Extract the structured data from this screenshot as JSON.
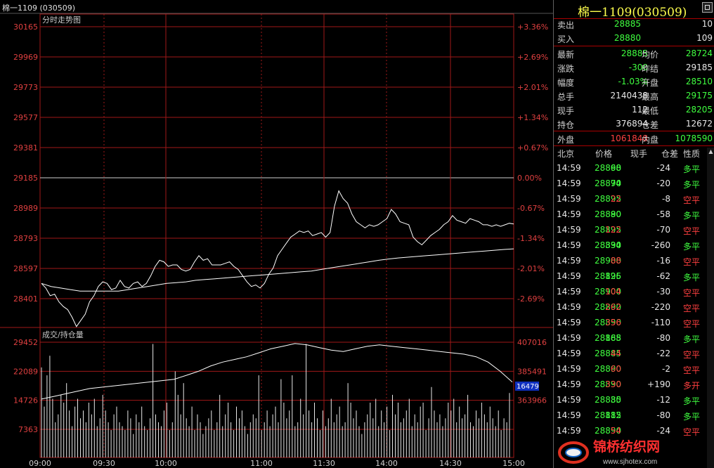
{
  "window_title": "棉一1109 (030509)",
  "chart_title_top": "分时走势图",
  "chart_title_bottom": "成交/持仓量",
  "chart_data": [
    {
      "type": "line",
      "title": "分时走势图",
      "yticks_left": [
        "30165",
        "29969",
        "29773",
        "29577",
        "29381",
        "29185",
        "28989",
        "28793",
        "28597",
        "28401"
      ],
      "yticks_right": [
        "+3.36%",
        "+2.69%",
        "+2.01%",
        "+1.34%",
        "+0.67%",
        "0.00%",
        "-0.67%",
        "-1.34%",
        "-2.01%",
        "-2.69%"
      ],
      "ylim": [
        28205,
        30165
      ],
      "x_ticks": [
        "09:00",
        "09:30",
        "10:00",
        "11:00",
        "11:30",
        "14:00",
        "14:30",
        "15:00"
      ],
      "series": [
        {
          "color": "#ffffff",
          "values": [
            28500,
            28470,
            28420,
            28430,
            28380,
            28350,
            28330,
            28280,
            28220,
            28260,
            28300,
            28380,
            28420,
            28480,
            28510,
            28500,
            28460,
            28470,
            28520,
            28480,
            28470,
            28500,
            28510,
            28480,
            28500,
            28550,
            28610,
            28650,
            28640,
            28610,
            28620,
            28620,
            28590,
            28580,
            28590,
            28640,
            28680,
            28650,
            28660,
            28620,
            28620,
            28620,
            28630,
            28640,
            28610,
            28590,
            28550,
            28510,
            28480,
            28490,
            28470,
            28500,
            28560,
            28600,
            28680,
            28720,
            28760,
            28800,
            28820,
            28840,
            28830,
            28840,
            28810,
            28820,
            28830,
            28800,
            28830,
            29000,
            29100,
            29050,
            29020,
            28950,
            28900,
            28880,
            28860,
            28880,
            28870,
            28880,
            28900,
            28920,
            28980,
            28950,
            28900,
            28890,
            28880,
            28800,
            28770,
            28750,
            28780,
            28810,
            28830,
            28850,
            28880,
            28900,
            28940,
            28910,
            28900,
            28890,
            28920,
            28910,
            28900,
            28880,
            28880,
            28870,
            28880,
            28870,
            28880,
            28890,
            28885
          ]
        },
        {
          "color": "#ffffff",
          "values": [
            28500,
            28480,
            28470,
            28460,
            28450,
            28450,
            28450,
            28450,
            28450,
            28460,
            28470,
            28480,
            28490,
            28500,
            28505,
            28510,
            28520,
            28525,
            28530,
            28535,
            28540,
            28545,
            28550,
            28555,
            28560,
            28565,
            28570,
            28575,
            28580,
            28590,
            28600,
            28610,
            28620,
            28630,
            28640,
            28650,
            28658,
            28665,
            28670,
            28675,
            28680,
            28685,
            28690,
            28695,
            28700,
            28705,
            28710,
            28715,
            28720,
            28724
          ]
        }
      ]
    },
    {
      "type": "bar",
      "title": "成交/持仓量",
      "yticks_left": [
        "29452",
        "22089",
        "14726",
        "7363"
      ],
      "yticks_right": [
        "407016",
        "385491",
        "363966"
      ],
      "current_label": "16479",
      "ylim": [
        0,
        29452
      ],
      "values": [
        23000,
        13000,
        21000,
        26000,
        15000,
        9000,
        11000,
        16000,
        14000,
        19000,
        12000,
        8000,
        13000,
        15000,
        10000,
        12000,
        9000,
        14000,
        11000,
        15000,
        8000,
        10000,
        16000,
        12000,
        9000,
        7000,
        11000,
        13000,
        9000,
        8000,
        7000,
        12000,
        10000,
        6000,
        11000,
        9000,
        13000,
        8000,
        7000,
        10000,
        29000,
        11000,
        9000,
        8000,
        12000,
        14000,
        7000,
        9000,
        22000,
        16000,
        11000,
        19000,
        10000,
        8000,
        13000,
        7000,
        11000,
        9000,
        6000,
        8000,
        10000,
        12000,
        7000,
        9000,
        16000,
        8000,
        11000,
        14000,
        9000,
        7000,
        13000,
        10000,
        12000,
        8000,
        6000,
        9000,
        11000,
        10000,
        21000,
        7000,
        9000,
        12000,
        8000,
        11000,
        13000,
        9000,
        20000,
        14000,
        10000,
        12000,
        21000,
        8000,
        9000,
        15000,
        11000,
        29000,
        12000,
        9000,
        14000,
        10000,
        7000,
        12000,
        8000,
        10000,
        15000,
        9000,
        11000,
        13000,
        8000,
        9000,
        19000,
        14000,
        10000,
        12000,
        8000,
        6000,
        9000,
        11000,
        14000,
        10000,
        15000,
        8000,
        12000,
        9000,
        13000,
        7000,
        16000,
        11000,
        14000,
        9000,
        10000,
        12000,
        15000,
        8000,
        11000,
        9000,
        13000,
        14000,
        7000,
        10000,
        18000,
        12000,
        9000,
        11000,
        8000,
        10000,
        14000,
        12000,
        15000,
        9000,
        13000,
        10000,
        11000,
        16000,
        9000,
        8000,
        12000,
        10000,
        14000,
        11000,
        9000,
        13000,
        10000,
        8000,
        12000,
        7000,
        10000,
        9000,
        16479
      ],
      "oi_series": [
        364000,
        366000,
        368000,
        370000,
        372000,
        373000,
        374000,
        375000,
        376000,
        377000,
        378000,
        379000,
        382000,
        385000,
        389000,
        392000,
        394000,
        396000,
        399000,
        402000,
        404000,
        406000,
        405000,
        403000,
        401000,
        400000,
        402000,
        404000,
        405000,
        404000,
        403000,
        402000,
        401000,
        400000,
        399000,
        398000,
        396000,
        392000,
        385000,
        376894
      ]
    }
  ],
  "panel": {
    "title": "棉一1109(030509)",
    "ask": {
      "label": "卖出",
      "price": "28885",
      "vol": "10"
    },
    "bid": {
      "label": "买入",
      "price": "28880",
      "vol": "109"
    },
    "stats": [
      {
        "l1": "最新",
        "v1": "28885",
        "c1": "g",
        "l2": "均价",
        "v2": "28724",
        "c2": "g"
      },
      {
        "l1": "涨跌",
        "v1": "-300",
        "c1": "g",
        "l2": "昨结",
        "v2": "29185",
        "c2": "w"
      },
      {
        "l1": "幅度",
        "v1": "-1.03%",
        "c1": "g",
        "l2": "开盘",
        "v2": "28510",
        "c2": "g"
      },
      {
        "l1": "总手",
        "v1": "2140438",
        "c1": "w",
        "l2": "最高",
        "v2": "29175",
        "c2": "g"
      },
      {
        "l1": "现手",
        "v1": "112",
        "c1": "w",
        "l2": "最低",
        "v2": "28205",
        "c2": "g"
      },
      {
        "l1": "持仓",
        "v1": "376894",
        "c1": "w",
        "l2": "仓差",
        "v2": "12672",
        "c2": "w"
      }
    ],
    "outer": {
      "label": "外盘",
      "value": "1061848"
    },
    "inner": {
      "label": "内盘",
      "value": "1078590"
    },
    "table_headers": [
      "北京",
      "价格",
      "现手",
      "仓差",
      "性质"
    ],
    "trades": [
      {
        "time": "14:59",
        "price": "28890",
        "vol": "68",
        "vc": "g",
        "diff": "-24",
        "nature": "多平",
        "nc": "g"
      },
      {
        "time": "14:59",
        "price": "28890",
        "vol": "74",
        "vc": "g",
        "diff": "-20",
        "nature": "多平",
        "nc": "g"
      },
      {
        "time": "14:59",
        "price": "28895",
        "vol": "22",
        "vc": "r",
        "diff": "-8",
        "nature": "空平",
        "nc": "r"
      },
      {
        "time": "14:59",
        "price": "28890",
        "vol": "80",
        "vc": "g",
        "diff": "-58",
        "nature": "多平",
        "nc": "g"
      },
      {
        "time": "14:59",
        "price": "28895",
        "vol": "122",
        "vc": "r",
        "diff": "-70",
        "nature": "空平",
        "nc": "r"
      },
      {
        "time": "14:59",
        "price": "28890",
        "vol": "334",
        "vc": "g",
        "diff": "-260",
        "nature": "多平",
        "nc": "g"
      },
      {
        "time": "14:59",
        "price": "28900",
        "vol": "88",
        "vc": "r",
        "diff": "-16",
        "nature": "空平",
        "nc": "r"
      },
      {
        "time": "14:59",
        "price": "28895",
        "vol": "126",
        "vc": "g",
        "diff": "-62",
        "nature": "多平",
        "nc": "g"
      },
      {
        "time": "14:59",
        "price": "28900",
        "vol": "104",
        "vc": "r",
        "diff": "-30",
        "nature": "空平",
        "nc": "r"
      },
      {
        "time": "14:59",
        "price": "28890",
        "vol": "262",
        "vc": "r",
        "diff": "-220",
        "nature": "空平",
        "nc": "r"
      },
      {
        "time": "14:59",
        "price": "28890",
        "vol": "356",
        "vc": "r",
        "diff": "-110",
        "nature": "空平",
        "nc": "r"
      },
      {
        "time": "14:59",
        "price": "28885",
        "vol": "168",
        "vc": "g",
        "diff": "-80",
        "nature": "多平",
        "nc": "g"
      },
      {
        "time": "14:59",
        "price": "28885",
        "vol": "44",
        "vc": "r",
        "diff": "-22",
        "nature": "空平",
        "nc": "r"
      },
      {
        "time": "14:59",
        "price": "28890",
        "vol": "60",
        "vc": "r",
        "diff": "-2",
        "nature": "空平",
        "nc": "r"
      },
      {
        "time": "14:59",
        "price": "28890",
        "vol": "330",
        "vc": "r",
        "diff": "+190",
        "nature": "多开",
        "nc": "r"
      },
      {
        "time": "14:59",
        "price": "28885",
        "vol": "30",
        "vc": "g",
        "diff": "-12",
        "nature": "多平",
        "nc": "g"
      },
      {
        "time": "14:59",
        "price": "28885",
        "vol": "112",
        "vc": "g",
        "diff": "-80",
        "nature": "多平",
        "nc": "g"
      },
      {
        "time": "14:59",
        "price": "28890",
        "vol": "54",
        "vc": "r",
        "diff": "-24",
        "nature": "空平",
        "nc": "r"
      }
    ]
  },
  "watermark": {
    "brand": "锦桥纺织网",
    "url": "www.sjhotex.com"
  }
}
